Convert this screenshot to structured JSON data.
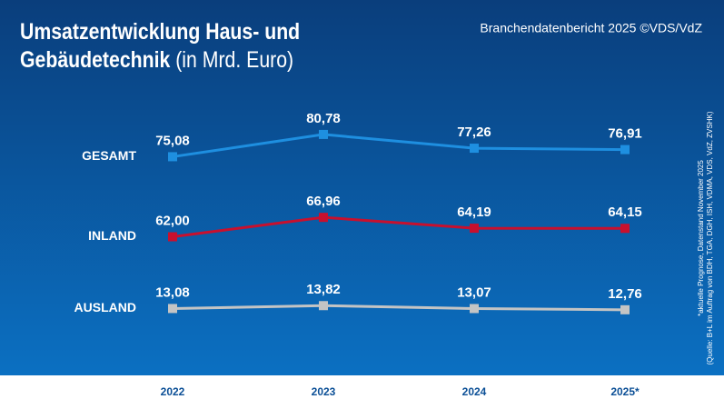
{
  "chart_data": {
    "type": "line",
    "title": "Umsatzentwicklung Haus- und Gebäudetechnik",
    "unit": "(in Mrd. Euro)",
    "source": "Branchendatenbericht 2025 ©VDS/VdZ",
    "footnotes": [
      "*aktuelle Prognose, Datenstand November 2025",
      "(Quelle: B+L im Auftrag von BDH, TGA, DGH, ISH, VDMA, VDS, VdZ, ZVSHK)"
    ],
    "categories": [
      "2022",
      "2023",
      "2024",
      "2025*"
    ],
    "series": [
      {
        "name": "GESAMT",
        "color": "#1e8fe0",
        "values": [
          75.08,
          80.78,
          77.26,
          76.91
        ],
        "value_labels": [
          "75,08",
          "80,78",
          "77,26",
          "76,91"
        ]
      },
      {
        "name": "INLAND",
        "color": "#c8102e",
        "values": [
          62.0,
          66.96,
          64.19,
          64.15
        ],
        "value_labels": [
          "62,00",
          "66,96",
          "64,19",
          "64,15"
        ]
      },
      {
        "name": "AUSLAND",
        "color": "#c4c4c4",
        "values": [
          13.08,
          13.82,
          13.07,
          12.76
        ],
        "value_labels": [
          "13,08",
          "13,82",
          "13,07",
          "12,76"
        ]
      }
    ]
  }
}
